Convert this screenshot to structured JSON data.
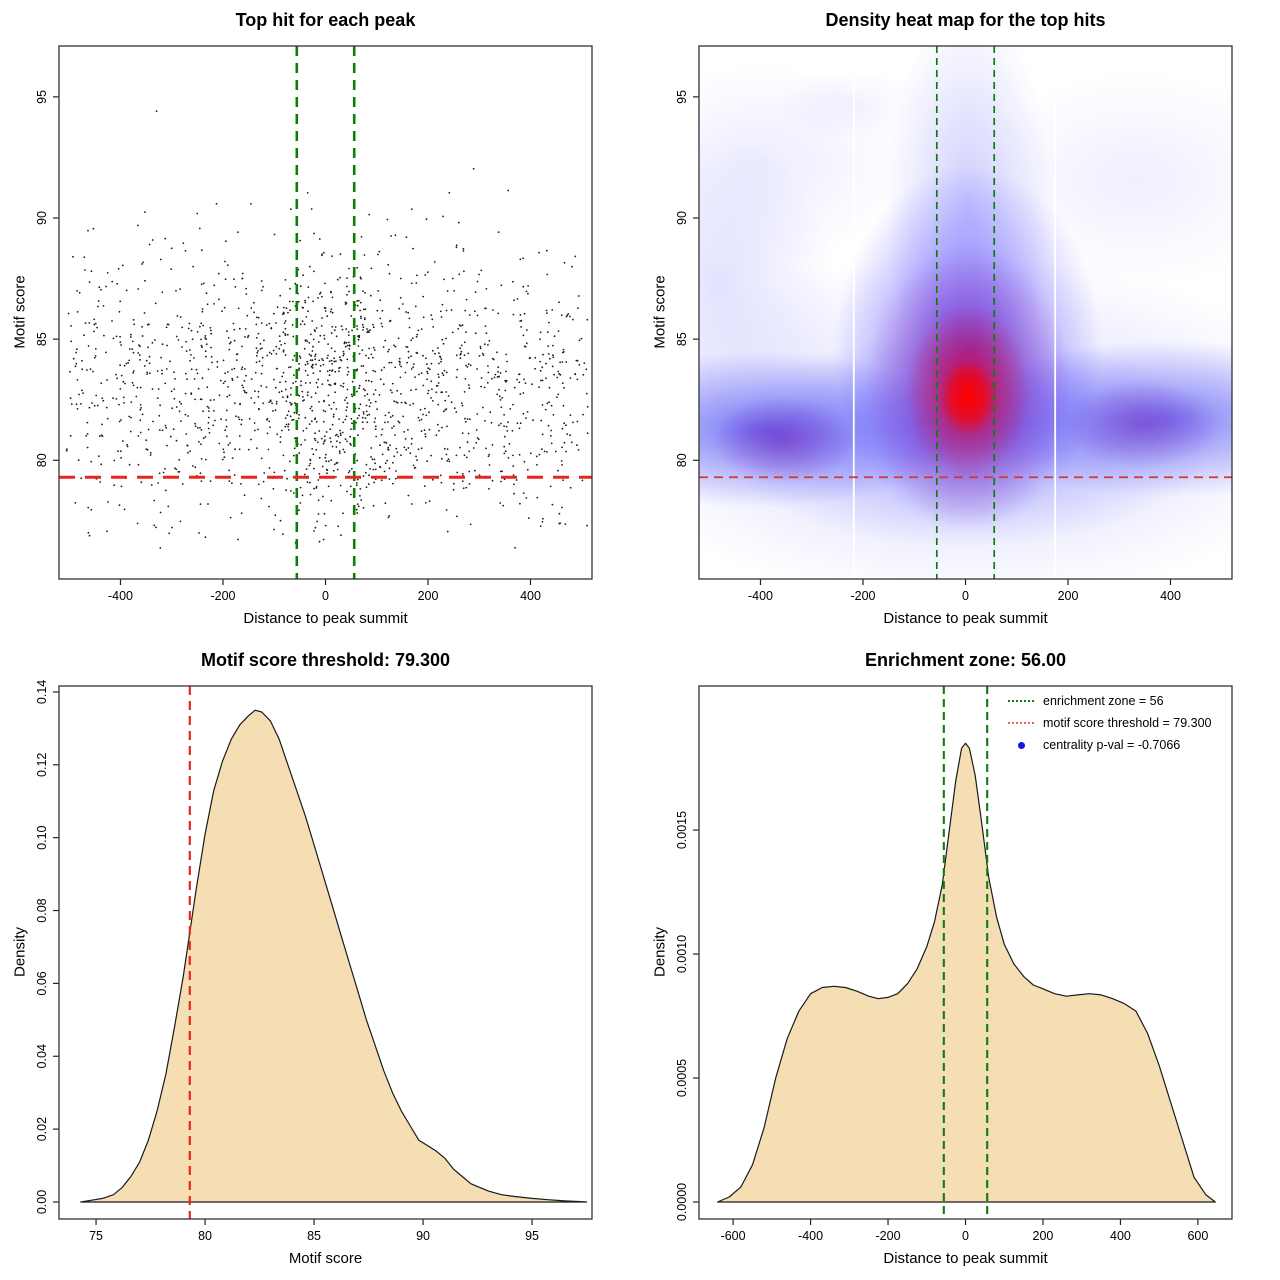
{
  "figure": {
    "background": "#ffffff"
  },
  "colors": {
    "point": "#1b1b1b",
    "box": "#333333",
    "red_line": "#e8261d",
    "heat_red_line": "#cf3a34",
    "green_line": "#0e7d0e",
    "legend_red": "#e96060",
    "legend_blue": "#1414e0",
    "density_fill": "#f5deb3",
    "density_stroke": "#1a1a1a",
    "heat_white_line": "#ffffff"
  },
  "chart_data": [
    {
      "type": "scatter",
      "title": "Top hit for each peak",
      "xlabel": "Distance to peak summit",
      "ylabel": "Motif score",
      "xlim": [
        -520,
        520
      ],
      "ylim": [
        75.1,
        97.1
      ],
      "x_ticks": [
        -400,
        -200,
        0,
        200,
        400
      ],
      "y_ticks": [
        80,
        85,
        90,
        95
      ],
      "tick_decimals": 0,
      "vlines": {
        "values": [
          -56,
          56
        ],
        "style": "dashed",
        "meaning": "enrichment zone"
      },
      "hline": {
        "value": 79.3,
        "style": "dashed",
        "meaning": "motif score threshold"
      },
      "points": {
        "seed": 20240521,
        "n": 1700,
        "x_model": {
          "uniform_frac": 0.66,
          "wide_frac": 0.22,
          "wide_sigma": 185,
          "center_frac": 0.12,
          "center_sigma": 55,
          "range": [
            -505,
            512
          ]
        },
        "y_model": {
          "mode": 82.3,
          "sigma": 2.45,
          "tail_frac": 0.22,
          "tail_sigma": 3.1,
          "range": [
            76.3,
            95.7
          ]
        }
      }
    },
    {
      "type": "heatmap",
      "title": "Density heat map for the top hits",
      "xlabel": "Distance to peak summit",
      "ylabel": "Motif score",
      "xlim": [
        -520,
        520
      ],
      "ylim": [
        75.1,
        97.1
      ],
      "x_ticks": [
        -400,
        -200,
        0,
        200,
        400
      ],
      "y_ticks": [
        80,
        85,
        90,
        95
      ],
      "tick_decimals": 0,
      "hotspot": {
        "x": 5,
        "y": 82.7
      },
      "dense_band_y": [
        80,
        84.5
      ],
      "side_maxima": [
        {
          "x": -350,
          "y": 81
        },
        {
          "x": 310,
          "y": 82
        }
      ],
      "white_gridlines_x": [
        -218,
        175
      ],
      "palette": [
        "#ffffff",
        "#0000ff",
        "#ff0000"
      ],
      "vlines": {
        "values": [
          -56,
          56
        ],
        "style": "dashed",
        "meaning": "enrichment zone"
      },
      "hline": {
        "value": 79.3,
        "style": "dashed",
        "meaning": "motif score threshold"
      }
    },
    {
      "type": "area",
      "title": "Motif score threshold: 79.300",
      "xlabel": "Motif score",
      "ylabel": "Density",
      "xlim": [
        73.3,
        97.75
      ],
      "ylim": [
        -0.004667,
        0.14163
      ],
      "x_ticks": [
        75,
        80,
        85,
        90,
        95
      ],
      "y_ticks": [
        0,
        0.02,
        0.04,
        0.06,
        0.08,
        0.1,
        0.12,
        0.14
      ],
      "tick_decimals": 2,
      "vline": {
        "value": 79.3,
        "style": "dashed",
        "meaning": "motif score threshold"
      },
      "curve": [
        [
          74.3,
          0
        ],
        [
          74.8,
          0.0005
        ],
        [
          75.3,
          0.001
        ],
        [
          75.8,
          0.002
        ],
        [
          76.2,
          0.004
        ],
        [
          76.6,
          0.007
        ],
        [
          77.0,
          0.011
        ],
        [
          77.4,
          0.017
        ],
        [
          77.8,
          0.025
        ],
        [
          78.2,
          0.035
        ],
        [
          78.6,
          0.048
        ],
        [
          79.0,
          0.062
        ],
        [
          79.3,
          0.074
        ],
        [
          79.6,
          0.086
        ],
        [
          80.0,
          0.101
        ],
        [
          80.4,
          0.113
        ],
        [
          80.8,
          0.121
        ],
        [
          81.2,
          0.127
        ],
        [
          81.6,
          0.131
        ],
        [
          82.0,
          0.1335
        ],
        [
          82.3,
          0.135
        ],
        [
          82.6,
          0.1345
        ],
        [
          83.0,
          0.132
        ],
        [
          83.4,
          0.127
        ],
        [
          83.8,
          0.12
        ],
        [
          84.2,
          0.113
        ],
        [
          84.6,
          0.106
        ],
        [
          85.0,
          0.098
        ],
        [
          85.4,
          0.09
        ],
        [
          85.8,
          0.082
        ],
        [
          86.2,
          0.074
        ],
        [
          86.6,
          0.066
        ],
        [
          87.0,
          0.058
        ],
        [
          87.4,
          0.05
        ],
        [
          87.8,
          0.043
        ],
        [
          88.2,
          0.036
        ],
        [
          88.6,
          0.03
        ],
        [
          89.0,
          0.025
        ],
        [
          89.4,
          0.021
        ],
        [
          89.8,
          0.017
        ],
        [
          90.2,
          0.0155
        ],
        [
          90.6,
          0.014
        ],
        [
          91.0,
          0.012
        ],
        [
          91.4,
          0.009
        ],
        [
          91.8,
          0.007
        ],
        [
          92.2,
          0.005
        ],
        [
          92.6,
          0.004
        ],
        [
          93.0,
          0.003
        ],
        [
          93.6,
          0.002
        ],
        [
          94.2,
          0.0015
        ],
        [
          95.0,
          0.001
        ],
        [
          95.8,
          0.0006
        ],
        [
          96.5,
          0.0003
        ],
        [
          97.2,
          0.0001
        ],
        [
          97.5,
          0
        ]
      ]
    },
    {
      "type": "area",
      "title": "Enrichment zone: 56.00",
      "xlabel": "Distance to peak summit",
      "ylabel": "Density",
      "xlim": [
        -688,
        688
      ],
      "ylim": [
        -6.86e-05,
        0.002081
      ],
      "x_ticks": [
        -600,
        -400,
        -200,
        0,
        200,
        400,
        600
      ],
      "y_ticks": [
        0,
        0.0005,
        0.001,
        0.0015
      ],
      "tick_decimals": 4,
      "vlines": {
        "values": [
          -56,
          56
        ],
        "style": "dashed",
        "meaning": "enrichment zone"
      },
      "curve": [
        [
          -640,
          0
        ],
        [
          -610,
          2e-05
        ],
        [
          -580,
          6e-05
        ],
        [
          -550,
          0.00015
        ],
        [
          -520,
          0.0003
        ],
        [
          -490,
          0.0005
        ],
        [
          -460,
          0.00066
        ],
        [
          -430,
          0.00077
        ],
        [
          -400,
          0.00084
        ],
        [
          -370,
          0.000865
        ],
        [
          -340,
          0.00087
        ],
        [
          -310,
          0.000865
        ],
        [
          -280,
          0.00085
        ],
        [
          -250,
          0.00083
        ],
        [
          -225,
          0.00082
        ],
        [
          -200,
          0.000825
        ],
        [
          -175,
          0.00084
        ],
        [
          -150,
          0.00088
        ],
        [
          -125,
          0.00094
        ],
        [
          -100,
          0.00103
        ],
        [
          -80,
          0.00113
        ],
        [
          -60,
          0.00128
        ],
        [
          -40,
          0.00152
        ],
        [
          -25,
          0.0017
        ],
        [
          -10,
          0.00183
        ],
        [
          0,
          0.00185
        ],
        [
          10,
          0.00183
        ],
        [
          25,
          0.00172
        ],
        [
          40,
          0.00155
        ],
        [
          60,
          0.00131
        ],
        [
          80,
          0.00115
        ],
        [
          100,
          0.00104
        ],
        [
          125,
          0.00096
        ],
        [
          150,
          0.00091
        ],
        [
          175,
          0.000875
        ],
        [
          200,
          0.00086
        ],
        [
          230,
          0.00084
        ],
        [
          260,
          0.00083
        ],
        [
          290,
          0.000835
        ],
        [
          320,
          0.00084
        ],
        [
          350,
          0.000835
        ],
        [
          380,
          0.00082
        ],
        [
          410,
          0.0008
        ],
        [
          440,
          0.00077
        ],
        [
          470,
          0.00068
        ],
        [
          500,
          0.00055
        ],
        [
          530,
          0.0004
        ],
        [
          560,
          0.00025
        ],
        [
          590,
          0.0001
        ],
        [
          620,
          3e-05
        ],
        [
          645,
          0
        ]
      ],
      "legend": {
        "position": "top-right",
        "entries": [
          {
            "label": "enrichment zone = 56",
            "swatch": "green-dotted-line"
          },
          {
            "label": "motif score threshold = 79.300",
            "swatch": "red-dotted-line"
          },
          {
            "label": "centrality p-val = -0.7066",
            "swatch": "blue-dot"
          }
        ]
      }
    }
  ]
}
